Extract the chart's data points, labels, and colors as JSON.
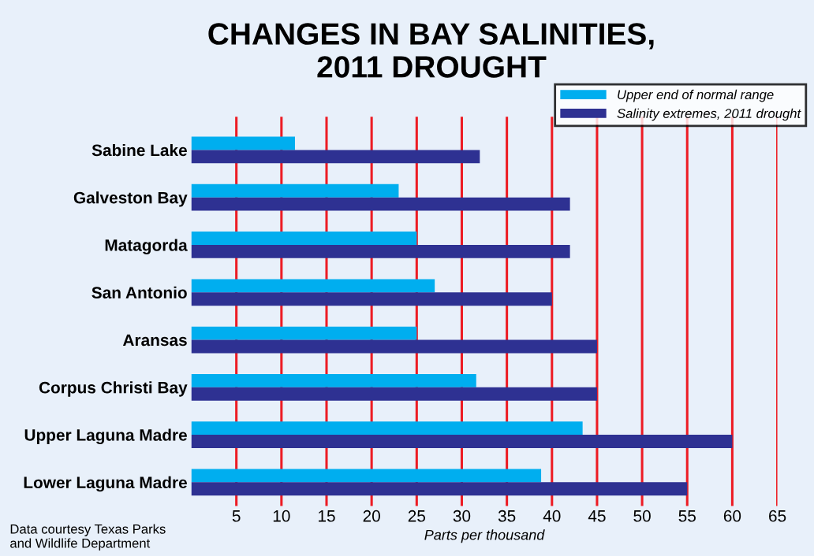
{
  "chart_data": {
    "type": "bar",
    "orientation": "horizontal",
    "title": "CHANGES IN BAY SALINITIES,\n2011 DROUGHT",
    "xlabel": "Parts per thousand",
    "categories": [
      "Sabine Lake",
      "Galveston Bay",
      "Matagorda",
      "San Antonio",
      "Aransas",
      "Corpus Christi Bay",
      "Upper Laguna Madre",
      "Lower Laguna Madre"
    ],
    "series": [
      {
        "name": "Upper end of normal range",
        "color": "#00aeef",
        "values": [
          11.5,
          23,
          25,
          27,
          25,
          31.6,
          43.4,
          38.8
        ]
      },
      {
        "name": "Salinity extremes, 2011 drought",
        "color": "#2e3192",
        "values": [
          32,
          42,
          42,
          40,
          45,
          45,
          60,
          55
        ]
      }
    ],
    "xlim": [
      0,
      65
    ],
    "xticks": [
      5,
      10,
      15,
      20,
      25,
      30,
      35,
      40,
      45,
      50,
      55,
      60,
      65
    ],
    "grid": "x",
    "legend": "top right",
    "annotations": [
      "Data courtesy Texas Parks\nand Wildlife Department"
    ]
  }
}
